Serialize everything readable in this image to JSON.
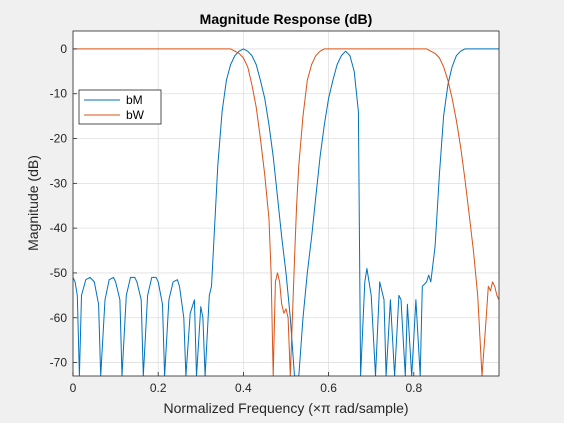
{
  "chart_data": {
    "type": "line",
    "title": "Magnitude Response (dB)",
    "xlabel": "Normalized Frequency  (×π rad/sample)",
    "ylabel": "Magnitude (dB)",
    "xlim": [
      0,
      1
    ],
    "ylim": [
      -73,
      4
    ],
    "xticks": [
      0,
      0.2,
      0.4,
      0.6,
      0.8
    ],
    "xtick_labels": [
      "0",
      "0.2",
      "0.4",
      "0.6",
      "0.8"
    ],
    "yticks": [
      0,
      -10,
      -20,
      -30,
      -40,
      -50,
      -60,
      -70
    ],
    "ytick_labels": [
      "0",
      "-10",
      "-20",
      "-30",
      "-40",
      "-50",
      "-60",
      "-70"
    ],
    "grid": true,
    "legend_position": "upper-left",
    "series": [
      {
        "name": "bM",
        "color": "#0072bd",
        "x": [
          0,
          0.005,
          0.01,
          0.015,
          0.02,
          0.03,
          0.04,
          0.05,
          0.06,
          0.065,
          0.075,
          0.085,
          0.095,
          0.1,
          0.11,
          0.115,
          0.125,
          0.135,
          0.145,
          0.15,
          0.16,
          0.165,
          0.175,
          0.185,
          0.195,
          0.2,
          0.21,
          0.215,
          0.225,
          0.235,
          0.245,
          0.25,
          0.26,
          0.265,
          0.275,
          0.285,
          0.29,
          0.3,
          0.305,
          0.31,
          0.32,
          0.325,
          0.33,
          0.34,
          0.35,
          0.36,
          0.37,
          0.38,
          0.39,
          0.4,
          0.41,
          0.42,
          0.43,
          0.44,
          0.45,
          0.46,
          0.47,
          0.48,
          0.49,
          0.5,
          0.51,
          0.52,
          0.53,
          0.54,
          0.55,
          0.56,
          0.57,
          0.58,
          0.59,
          0.6,
          0.61,
          0.62,
          0.63,
          0.64,
          0.65,
          0.66,
          0.67,
          0.675,
          0.685,
          0.69,
          0.7,
          0.71,
          0.72,
          0.73,
          0.735,
          0.745,
          0.755,
          0.765,
          0.77,
          0.78,
          0.785,
          0.795,
          0.805,
          0.815,
          0.82,
          0.83,
          0.835,
          0.84,
          0.85,
          0.86,
          0.87,
          0.88,
          0.89,
          0.9,
          0.91,
          0.92,
          0.93,
          0.94,
          0.95,
          0.96,
          0.97,
          0.98,
          0.99,
          1.0
        ],
        "y": [
          -51,
          -52,
          -55,
          -73,
          -55,
          -51.5,
          -51,
          -52,
          -57,
          -73,
          -56,
          -51.5,
          -51,
          -52,
          -56,
          -73,
          -55,
          -51,
          -51,
          -52,
          -56,
          -73,
          -55,
          -51,
          -51,
          -52,
          -57,
          -73,
          -56,
          -52,
          -51.5,
          -53,
          -60,
          -73,
          -59,
          -56,
          -73,
          -57.5,
          -60,
          -73,
          -55,
          -53,
          -44,
          -26,
          -14,
          -7,
          -3.5,
          -1.5,
          -0.5,
          0,
          -0.5,
          -1.5,
          -3.5,
          -7,
          -11,
          -17,
          -24,
          -33,
          -42,
          -50,
          -60,
          -73,
          -73,
          -60,
          -50,
          -42,
          -33,
          -24,
          -17,
          -11,
          -7,
          -3.5,
          -1.5,
          -0.5,
          -1.5,
          -5,
          -14,
          -73,
          -52,
          -49,
          -55,
          -73,
          -52,
          -56,
          -73,
          -56,
          -73,
          -55,
          -56,
          -73,
          -57,
          -73,
          -56,
          -73,
          -53,
          -52,
          -50.5,
          -52,
          -44,
          -28,
          -15,
          -8,
          -4,
          -1.5,
          -0.5,
          0,
          0,
          0,
          0,
          0,
          0,
          0,
          0,
          0
        ]
      },
      {
        "name": "bW",
        "color": "#d95319",
        "x": [
          0,
          0.05,
          0.1,
          0.15,
          0.2,
          0.25,
          0.3,
          0.33,
          0.35,
          0.37,
          0.38,
          0.39,
          0.4,
          0.41,
          0.42,
          0.43,
          0.44,
          0.45,
          0.46,
          0.465,
          0.47,
          0.475,
          0.48,
          0.485,
          0.49,
          0.495,
          0.5,
          0.505,
          0.51,
          0.515,
          0.52,
          0.525,
          0.53,
          0.54,
          0.55,
          0.56,
          0.57,
          0.58,
          0.59,
          0.6,
          0.61,
          0.62,
          0.63,
          0.64,
          0.65,
          0.7,
          0.75,
          0.8,
          0.82,
          0.83,
          0.84,
          0.85,
          0.86,
          0.87,
          0.88,
          0.89,
          0.9,
          0.91,
          0.92,
          0.93,
          0.94,
          0.95,
          0.96,
          0.97,
          0.975,
          0.98,
          0.985,
          0.99,
          0.995,
          1.0
        ],
        "y": [
          0,
          0,
          0,
          0,
          0,
          0,
          0,
          0,
          0,
          0,
          -0.5,
          -1,
          -2,
          -4,
          -8,
          -13,
          -20,
          -28,
          -38,
          -50,
          -73,
          -52,
          -50,
          -52,
          -57,
          -59,
          -58,
          -60,
          -73,
          -60,
          -47,
          -35,
          -26,
          -15,
          -7,
          -3.5,
          -1.5,
          -0.5,
          0,
          0,
          0,
          0,
          0,
          0,
          0,
          0,
          0,
          0,
          0,
          0,
          -0.5,
          -1,
          -2,
          -4,
          -7,
          -11,
          -16,
          -22,
          -29,
          -37,
          -45,
          -55,
          -73,
          -60,
          -53,
          -54,
          -52,
          -53,
          -55,
          -56
        ]
      }
    ]
  }
}
